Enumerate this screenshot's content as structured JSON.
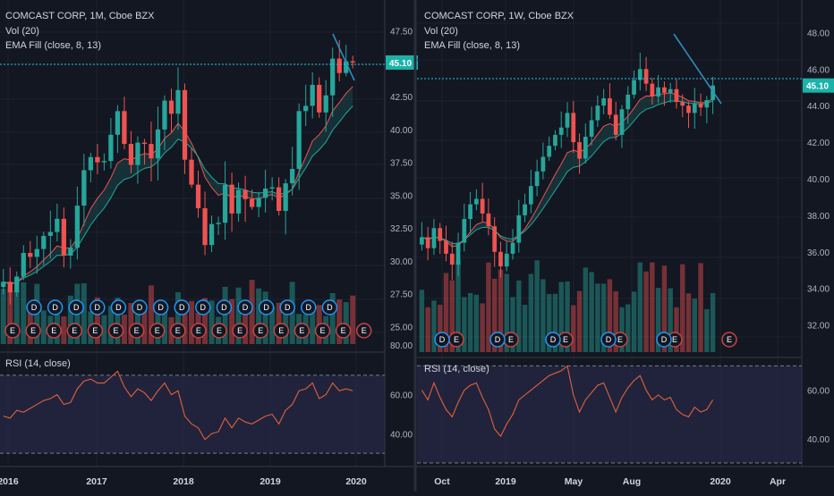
{
  "colors": {
    "background": "#131722",
    "up": "#26a69a",
    "down": "#ef5350",
    "ema_fast": "#ef5350",
    "ema_slow": "#26a69a",
    "rsi_line": "#e0603d",
    "rsi_band": "#2a2b4d",
    "price_line": "#26c6da",
    "trend_line": "#2d8fbf",
    "earnings_badge": "#c74444",
    "dividend_badge": "#2196f3"
  },
  "left": {
    "title": "COMCAST CORP, 1M, Cboe BZX",
    "vol_label": "Vol (20)",
    "ema_label": "EMA Fill (close, 8, 13)",
    "rsi_label": "RSI (14, close)",
    "price_tag": "45.10",
    "price_ticks": [
      "47.50",
      "45.10",
      "42.50",
      "40.00",
      "37.50",
      "35.00",
      "32.50",
      "30.00",
      "27.50",
      "25.00",
      "80.00"
    ],
    "rsi_ticks": [
      "60.00",
      "40.00"
    ],
    "x_ticks": [
      "2016",
      "2017",
      "2018",
      "2019",
      "2020"
    ],
    "dividend_badge_label": "D",
    "earnings_badge_label": "E",
    "earnings_count": 18,
    "dividend_count": 15
  },
  "right": {
    "title": "COMCAST CORP, 1W, Cboe BZX",
    "vol_label": "Vol (20)",
    "ema_label": "EMA Fill (close, 8, 13)",
    "rsi_label": "RSI (14, close)",
    "price_tag": "45.10",
    "price_ticks": [
      "48.00",
      "46.00",
      "45.10",
      "44.00",
      "42.00",
      "40.00",
      "38.00",
      "36.00",
      "34.00",
      "32.00"
    ],
    "rsi_ticks": [
      "60.00",
      "40.00"
    ],
    "x_ticks": [
      "Oct",
      "2019",
      "May",
      "Aug",
      "2020",
      "Apr"
    ],
    "dividend_badge_label": "D",
    "earnings_badge_label": "E",
    "earnings_count": 6,
    "dividend_count": 5
  },
  "chart_data": [
    {
      "type": "candlestick",
      "title": "COMCAST CORP, 1M, Cboe BZX",
      "interval": "1M",
      "ylim": [
        24,
        48.5
      ],
      "current_price": 45.1,
      "x_axis_labels": [
        "2016",
        "2017",
        "2018",
        "2019",
        "2020"
      ],
      "closes": [
        28.4,
        27.6,
        28.8,
        30.6,
        30.3,
        30.9,
        31.9,
        32.2,
        33.2,
        30.4,
        31.0,
        34.2,
        36.9,
        37.9,
        37.5,
        37.6,
        39.6,
        41.4,
        38.9,
        37.3,
        39.0,
        38.9,
        37.8,
        40.0,
        42.2,
        41.2,
        43.0,
        37.7,
        35.8,
        34.0,
        31.2,
        32.8,
        32.9,
        35.8,
        33.6,
        35.4,
        34.7,
        34.1,
        34.8,
        35.5,
        35.6,
        33.8,
        35.9,
        37.0,
        41.4,
        41.8,
        43.4,
        41.3,
        42.6,
        45.4,
        44.3,
        45.2,
        45.1
      ],
      "rsi": {
        "label": "RSI (14, close)",
        "ylim": [
          25,
          80
        ],
        "values": [
          49,
          48,
          52,
          51,
          53,
          55,
          57,
          58,
          60,
          55,
          56,
          63,
          67,
          68,
          66,
          66,
          69,
          72,
          64,
          59,
          63,
          61,
          57,
          62,
          66,
          60,
          62,
          49,
          45,
          43,
          37,
          40,
          41,
          48,
          43,
          48,
          46,
          45,
          47,
          49,
          50,
          45,
          52,
          55,
          62,
          63,
          66,
          58,
          60,
          66,
          62,
          63,
          62
        ]
      }
    },
    {
      "type": "candlestick",
      "title": "COMCAST CORP, 1W, Cboe BZX",
      "interval": "1W",
      "ylim": [
        31.2,
        48.8
      ],
      "current_price": 45.1,
      "x_axis_labels": [
        "Oct",
        "2019",
        "May",
        "Aug",
        "2020",
        "Apr"
      ],
      "closes": [
        36.8,
        36.2,
        37.3,
        36.6,
        35.9,
        35.3,
        36.5,
        37.8,
        38.6,
        38.9,
        38.1,
        37.4,
        36.0,
        35.2,
        35.9,
        36.5,
        38.0,
        38.6,
        39.6,
        40.4,
        41.2,
        41.8,
        42.4,
        42.8,
        43.6,
        42.0,
        41.1,
        42.3,
        43.2,
        44.0,
        44.4,
        43.5,
        42.4,
        43.8,
        44.6,
        45.4,
        46.0,
        45.2,
        44.5,
        45.0,
        44.7,
        44.9,
        44.2,
        44.0,
        43.6,
        44.1,
        43.9,
        44.3,
        45.1
      ],
      "rsi": {
        "label": "RSI (14, close)",
        "ylim": [
          30,
          72
        ],
        "values": [
          60,
          56,
          63,
          57,
          52,
          49,
          55,
          60,
          62,
          63,
          57,
          52,
          44,
          41,
          46,
          50,
          56,
          58,
          60,
          62,
          64,
          66,
          67,
          68,
          70,
          58,
          51,
          56,
          59,
          62,
          63,
          57,
          51,
          57,
          61,
          64,
          66,
          60,
          56,
          58,
          56,
          57,
          52,
          50,
          49,
          53,
          51,
          52,
          56
        ]
      }
    }
  ]
}
